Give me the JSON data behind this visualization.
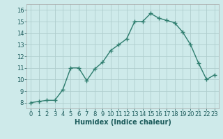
{
  "x": [
    0,
    1,
    2,
    3,
    4,
    5,
    6,
    7,
    8,
    9,
    10,
    11,
    12,
    13,
    14,
    15,
    16,
    17,
    18,
    19,
    20,
    21,
    22,
    23
  ],
  "y": [
    8.0,
    8.1,
    8.2,
    8.2,
    9.1,
    11.0,
    11.0,
    9.9,
    10.9,
    11.5,
    12.5,
    13.0,
    13.5,
    15.0,
    15.0,
    15.7,
    15.3,
    15.1,
    14.9,
    14.1,
    13.0,
    11.4,
    10.0,
    10.4
  ],
  "line_color": "#2e7d6e",
  "marker": "+",
  "marker_size": 4,
  "bg_color": "#ceeaea",
  "grid_color": "#b0cece",
  "xlabel": "Humidex (Indice chaleur)",
  "ylim": [
    7.5,
    16.5
  ],
  "xlim": [
    -0.5,
    23.5
  ],
  "yticks": [
    8,
    9,
    10,
    11,
    12,
    13,
    14,
    15,
    16
  ],
  "xticks": [
    0,
    1,
    2,
    3,
    4,
    5,
    6,
    7,
    8,
    9,
    10,
    11,
    12,
    13,
    14,
    15,
    16,
    17,
    18,
    19,
    20,
    21,
    22,
    23
  ],
  "tick_fontsize": 6,
  "xlabel_fontsize": 7,
  "line_width": 1.0
}
